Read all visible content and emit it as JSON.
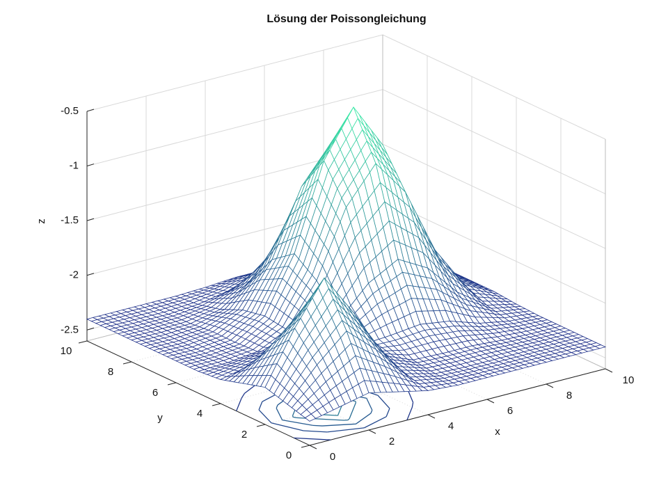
{
  "chart_data": {
    "type": "surface",
    "title": "Lösung der Poissongleichung",
    "xlabel": "x",
    "ylabel": "y",
    "zlabel": "z",
    "x": [
      0,
      1,
      2,
      3,
      4,
      5,
      6,
      7,
      8,
      9,
      10
    ],
    "y": [
      0,
      1,
      2,
      3,
      4,
      5,
      6,
      7,
      8,
      9,
      10
    ],
    "z": [
      [
        -2.38,
        -2.32,
        -2.26,
        -2.32,
        -2.38,
        -2.4,
        -2.4,
        -2.4,
        -2.4,
        -2.4,
        -2.4
      ],
      [
        -2.32,
        -2.03,
        -1.79,
        -2.03,
        -2.32,
        -2.39,
        -2.4,
        -2.4,
        -2.4,
        -2.4,
        -2.4
      ],
      [
        -2.26,
        -1.79,
        -1.4,
        -1.79,
        -2.25,
        -2.36,
        -2.37,
        -2.37,
        -2.39,
        -2.4,
        -2.4
      ],
      [
        -2.32,
        -2.03,
        -1.79,
        -2.01,
        -2.25,
        -2.23,
        -2.2,
        -2.24,
        -2.33,
        -2.38,
        -2.4
      ],
      [
        -2.38,
        -2.32,
        -2.25,
        -2.25,
        -2.12,
        -1.85,
        -1.7,
        -1.85,
        -2.14,
        -2.33,
        -2.39
      ],
      [
        -2.4,
        -2.39,
        -2.36,
        -2.23,
        -1.85,
        -1.25,
        -0.92,
        -1.25,
        -1.85,
        -2.24,
        -2.37
      ],
      [
        -2.4,
        -2.4,
        -2.37,
        -2.2,
        -1.7,
        -0.92,
        -0.5,
        -0.92,
        -1.7,
        -2.2,
        -2.37
      ],
      [
        -2.4,
        -2.4,
        -2.37,
        -2.24,
        -1.85,
        -1.25,
        -0.92,
        -1.25,
        -1.85,
        -2.24,
        -2.37
      ],
      [
        -2.4,
        -2.4,
        -2.39,
        -2.33,
        -2.14,
        -1.85,
        -1.7,
        -1.85,
        -2.14,
        -2.33,
        -2.39
      ],
      [
        -2.4,
        -2.4,
        -2.4,
        -2.38,
        -2.33,
        -2.24,
        -2.2,
        -2.24,
        -2.33,
        -2.38,
        -2.4
      ],
      [
        -2.4,
        -2.4,
        -2.4,
        -2.4,
        -2.39,
        -2.37,
        -2.37,
        -2.37,
        -2.39,
        -2.4,
        -2.4
      ]
    ],
    "xlim": [
      0,
      10
    ],
    "ylim": [
      0,
      10
    ],
    "zlim": [
      -2.6,
      -0.5
    ],
    "xticks": [
      0,
      2,
      4,
      6,
      8,
      10
    ],
    "yticks": [
      0,
      2,
      4,
      6,
      8,
      10
    ],
    "zticks": [
      -2.5,
      -2,
      -1.5,
      -1,
      -0.5
    ],
    "grid": true,
    "colormap": [
      "#1c1c86",
      "#3cf0a8"
    ]
  }
}
